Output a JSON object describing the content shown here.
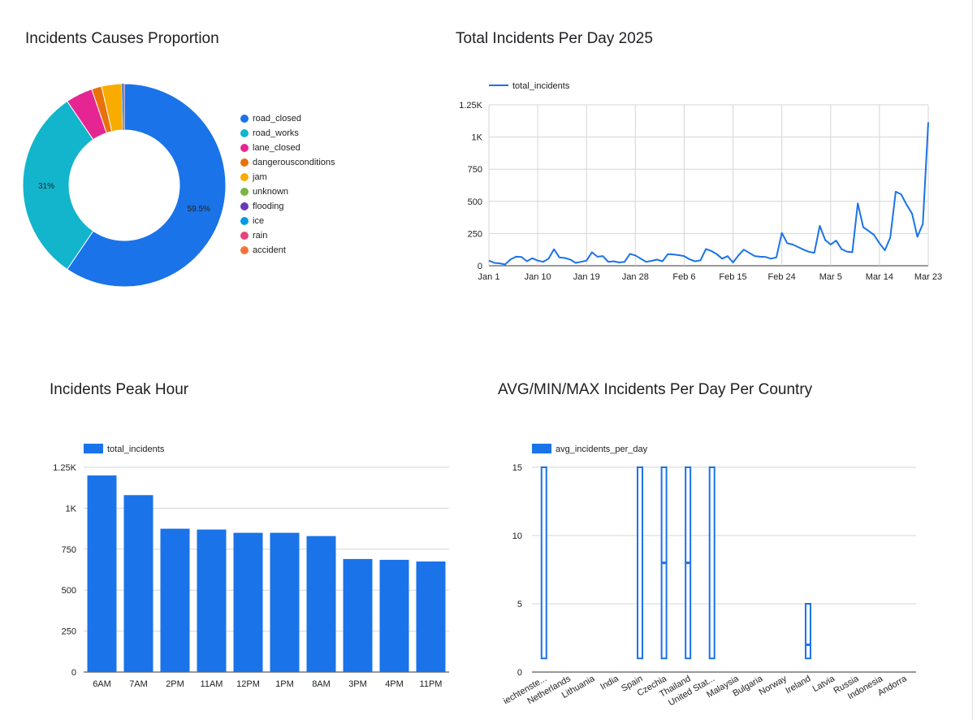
{
  "charts": {
    "causes": {
      "title": "Incidents Causes Proportion"
    },
    "daily": {
      "title": "Total Incidents Per Day 2025"
    },
    "peak": {
      "title": "Incidents Peak Hour"
    },
    "country": {
      "title": "AVG/MIN/MAX Incidents Per Day Per Country"
    }
  },
  "chart_data": [
    {
      "type": "pie",
      "subtype": "donut",
      "title": "Incidents Causes Proportion",
      "slices": [
        {
          "label": "road_closed",
          "value": 59.5,
          "color": "#1a73e8",
          "display": "59.5%"
        },
        {
          "label": "road_works",
          "value": 31.0,
          "color": "#12b5cb",
          "display": "31%"
        },
        {
          "label": "lane_closed",
          "value": 4.3,
          "color": "#e52592",
          "display": ""
        },
        {
          "label": "dangerousconditions",
          "value": 1.6,
          "color": "#e8710a",
          "display": ""
        },
        {
          "label": "jam",
          "value": 3.2,
          "color": "#f9ab00",
          "display": ""
        },
        {
          "label": "unknown",
          "value": 0.05,
          "color": "#7cb342",
          "display": ""
        },
        {
          "label": "flooding",
          "value": 0.1,
          "color": "#673ab7",
          "display": ""
        },
        {
          "label": "ice",
          "value": 0.1,
          "color": "#039be5",
          "display": ""
        },
        {
          "label": "rain",
          "value": 0.1,
          "color": "#e8437b",
          "display": ""
        },
        {
          "label": "accident",
          "value": 0.05,
          "color": "#f4743b",
          "display": ""
        }
      ],
      "legend": "right"
    },
    {
      "type": "line",
      "title": "Total Incidents Per Day 2025",
      "series": [
        {
          "name": "total_incidents",
          "color": "#1a73e8",
          "values": [
            40,
            22,
            18,
            10,
            50,
            70,
            68,
            35,
            58,
            40,
            30,
            55,
            128,
            65,
            60,
            48,
            22,
            30,
            40,
            105,
            70,
            75,
            30,
            35,
            25,
            30,
            92,
            80,
            55,
            30,
            38,
            48,
            35,
            90,
            88,
            82,
            75,
            50,
            35,
            42,
            130,
            115,
            90,
            55,
            75,
            25,
            80,
            125,
            100,
            75,
            70,
            68,
            55,
            65,
            255,
            175,
            165,
            145,
            125,
            108,
            100,
            310,
            200,
            165,
            195,
            130,
            110,
            105,
            485,
            300,
            270,
            240,
            175,
            120,
            220,
            575,
            555,
            475,
            405,
            225,
            325,
            1115
          ]
        }
      ],
      "x_tick_labels": [
        "Jan 1",
        "Jan 10",
        "Jan 19",
        "Jan 28",
        "Feb 6",
        "Feb 15",
        "Feb 24",
        "Mar 5",
        "Mar 14",
        "Mar 23"
      ],
      "y_tick_labels": [
        "0",
        "250",
        "500",
        "750",
        "1K",
        "1.25K"
      ],
      "ylim": [
        0,
        1250
      ],
      "grid": true,
      "legend": "top-left"
    },
    {
      "type": "bar",
      "title": "Incidents Peak Hour",
      "categories": [
        "6AM",
        "7AM",
        "2PM",
        "11AM",
        "12PM",
        "1PM",
        "8AM",
        "3PM",
        "4PM",
        "11PM"
      ],
      "series": [
        {
          "name": "total_incidents",
          "color": "#1a73e8",
          "values": [
            1200,
            1080,
            875,
            870,
            850,
            850,
            830,
            690,
            685,
            675
          ]
        }
      ],
      "y_tick_labels": [
        "0",
        "250",
        "500",
        "750",
        "1K",
        "1.25K"
      ],
      "ylim": [
        0,
        1250
      ],
      "grid": true,
      "legend": "top-left"
    },
    {
      "type": "bar",
      "subtype": "candlestick",
      "title": "AVG/MIN/MAX Incidents Per Day Per Country",
      "categories": [
        "Liechtenstein",
        "Netherlands",
        "Lithuania",
        "India",
        "Spain",
        "Czechia",
        "Thailand",
        "United States",
        "Malaysia",
        "Bulgaria",
        "Norway",
        "Ireland",
        "Latvia",
        "Russia",
        "Indonesia",
        "Andorra"
      ],
      "category_labels": [
        "iechtenste...",
        "Netherlands",
        "Lithuania",
        "India",
        "Spain",
        "Czechia",
        "Thailand",
        "United Stat...",
        "Malaysia",
        "Bulgaria",
        "Norway",
        "Ireland",
        "Latvia",
        "Russia",
        "Indonesia",
        "Andorra"
      ],
      "series": [
        {
          "name": "avg_incidents_per_day",
          "color": "#1a73e8"
        }
      ],
      "boxes": [
        {
          "index": 0,
          "low": 1,
          "high": 15,
          "mid": null
        },
        {
          "index": 4,
          "low": 1,
          "high": 15,
          "mid": null
        },
        {
          "index": 5,
          "low": 1,
          "high": 15,
          "mid": 8
        },
        {
          "index": 6,
          "low": 1,
          "high": 15,
          "mid": 8
        },
        {
          "index": 7,
          "low": 1,
          "high": 15,
          "mid": null
        },
        {
          "index": 11,
          "low": 1,
          "high": 5,
          "mid": 2
        }
      ],
      "y_tick_labels": [
        "0",
        "5",
        "10",
        "15"
      ],
      "ylim": [
        0,
        15
      ],
      "grid": true,
      "legend": "top-left"
    }
  ]
}
